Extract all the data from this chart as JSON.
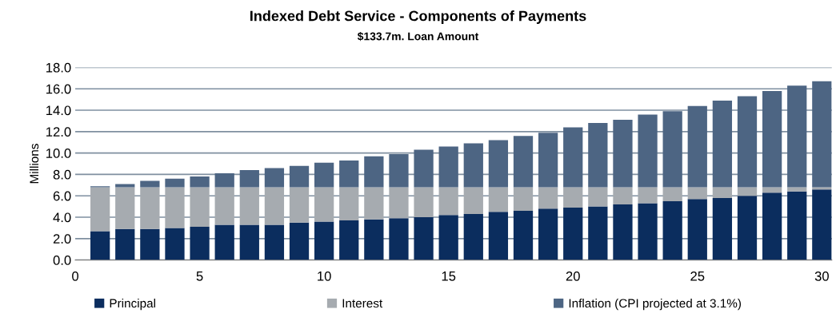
{
  "chart_data": {
    "type": "bar",
    "stacked": true,
    "title": "Indexed Debt Service - Components of Payments",
    "subtitle": "$133.7m. Loan Amount",
    "ylabel": "Millions",
    "x": [
      1,
      2,
      3,
      4,
      5,
      6,
      7,
      8,
      9,
      10,
      11,
      12,
      13,
      14,
      15,
      16,
      17,
      18,
      19,
      20,
      21,
      22,
      23,
      24,
      25,
      26,
      27,
      28,
      29,
      30
    ],
    "series": [
      {
        "name": "Principal",
        "color": "#0b2d5e",
        "values": [
          2.7,
          2.9,
          2.9,
          3.0,
          3.1,
          3.3,
          3.3,
          3.3,
          3.5,
          3.6,
          3.7,
          3.8,
          3.9,
          4.0,
          4.2,
          4.3,
          4.5,
          4.6,
          4.8,
          4.9,
          5.0,
          5.2,
          5.3,
          5.5,
          5.7,
          5.8,
          6.0,
          6.3,
          6.4,
          6.6
        ]
      },
      {
        "name": "Interest",
        "color": "#a6abb0",
        "values": [
          4.1,
          3.9,
          3.9,
          3.8,
          3.7,
          3.5,
          3.5,
          3.5,
          3.3,
          3.2,
          3.1,
          3.0,
          2.9,
          2.8,
          2.6,
          2.5,
          2.3,
          2.2,
          2.0,
          1.9,
          1.8,
          1.6,
          1.5,
          1.3,
          1.1,
          1.0,
          0.8,
          0.5,
          0.4,
          0.2
        ]
      },
      {
        "name": "Inflation (CPI projected at 3.1%)",
        "color": "#4d6583",
        "values": [
          0.1,
          0.3,
          0.6,
          0.8,
          1.0,
          1.3,
          1.6,
          1.8,
          2.0,
          2.3,
          2.5,
          2.9,
          3.1,
          3.5,
          3.8,
          4.1,
          4.4,
          4.8,
          5.1,
          5.6,
          6.0,
          6.3,
          6.8,
          7.1,
          7.6,
          8.1,
          8.5,
          9.0,
          9.5,
          9.9
        ]
      }
    ],
    "xlim": [
      0,
      30.4
    ],
    "xticks": [
      0,
      5,
      10,
      15,
      20,
      25,
      30
    ],
    "ylim": [
      0,
      18
    ],
    "yticks": [
      {
        "value": 0,
        "label": "0.0"
      },
      {
        "value": 2,
        "label": "2.0"
      },
      {
        "value": 4,
        "label": "4.0"
      },
      {
        "value": 6,
        "label": "6.0"
      },
      {
        "value": 8,
        "label": "8.0"
      },
      {
        "value": 10,
        "label": "10.0"
      },
      {
        "value": 12,
        "label": "12.0"
      },
      {
        "value": 14,
        "label": "14.0"
      },
      {
        "value": 16,
        "label": "16.0"
      },
      {
        "value": 18,
        "label": "18.0"
      }
    ],
    "grid": "y",
    "legend": "bottom"
  }
}
